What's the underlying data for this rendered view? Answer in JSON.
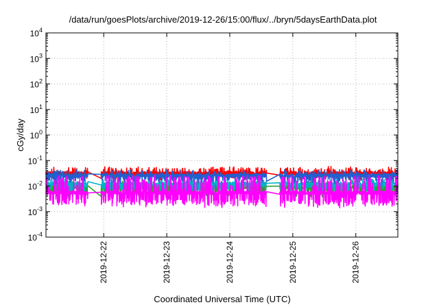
{
  "chart_data": {
    "type": "line",
    "title": "/data/run/goesPlots/archive/2019-12-26/15:00/flux/../bryn/5daysEarthData.plot",
    "xlabel": "Coordinated Universal Time (UTC)",
    "ylabel": "cGy/day",
    "scale_y": "log",
    "ylim": [
      0.0001,
      10000
    ],
    "y_ticks": [
      {
        "value": 0.0001,
        "base": "10",
        "exp": "-4"
      },
      {
        "value": 0.001,
        "base": "10",
        "exp": "-3"
      },
      {
        "value": 0.01,
        "base": "10",
        "exp": "-2"
      },
      {
        "value": 0.1,
        "base": "10",
        "exp": "-1"
      },
      {
        "value": 1,
        "base": "10",
        "exp": "0"
      },
      {
        "value": 10,
        "base": "10",
        "exp": "1"
      },
      {
        "value": 100,
        "base": "10",
        "exp": "2"
      },
      {
        "value": 1000,
        "base": "10",
        "exp": "3"
      },
      {
        "value": 10000,
        "base": "10",
        "exp": "4"
      }
    ],
    "x_type": "date",
    "xlim": [
      "2019-12-21T02:00",
      "2019-12-26T16:00"
    ],
    "x_ticks": [
      "2019-12-22",
      "2019-12-23",
      "2019-12-24",
      "2019-12-25",
      "2019-12-26"
    ],
    "grid": true,
    "series": [
      {
        "color": "#ff0000",
        "level": 0.032,
        "spike": 0.022,
        "dip": 0.6,
        "gaps": [
          [
            "2019-12-21T18:00",
            "2019-12-21T23:00"
          ],
          [
            "2019-12-24T14:00",
            "2019-12-24T19:00"
          ]
        ]
      },
      {
        "color": "#2ca02c",
        "level": 0.009,
        "spike": 0.006,
        "dip": 0.45,
        "gaps": [
          [
            "2019-12-21T18:00",
            "2019-12-21T23:00"
          ],
          [
            "2019-12-24T14:00",
            "2019-12-24T19:00"
          ]
        ]
      },
      {
        "color": "#00b0c8",
        "level": 0.012,
        "spike": 0.006,
        "dip": 0.5,
        "gaps": [
          [
            "2019-12-21T18:00",
            "2019-12-21T23:00"
          ],
          [
            "2019-12-24T14:00",
            "2019-12-24T19:00"
          ]
        ]
      },
      {
        "color": "#2060d0",
        "level": 0.026,
        "spike": 0.015,
        "dip": 0.55,
        "gaps": [
          [
            "2019-12-21T18:00",
            "2019-12-21T23:00"
          ],
          [
            "2019-12-24T14:00",
            "2019-12-24T19:00"
          ]
        ]
      },
      {
        "color": "#ff00ff",
        "level": 0.0055,
        "spike": 0.02,
        "dip": 0.3,
        "gaps": [
          [
            "2019-12-21T18:00",
            "2019-12-21T23:00"
          ],
          [
            "2019-12-24T14:00",
            "2019-12-24T19:00"
          ]
        ]
      }
    ]
  }
}
